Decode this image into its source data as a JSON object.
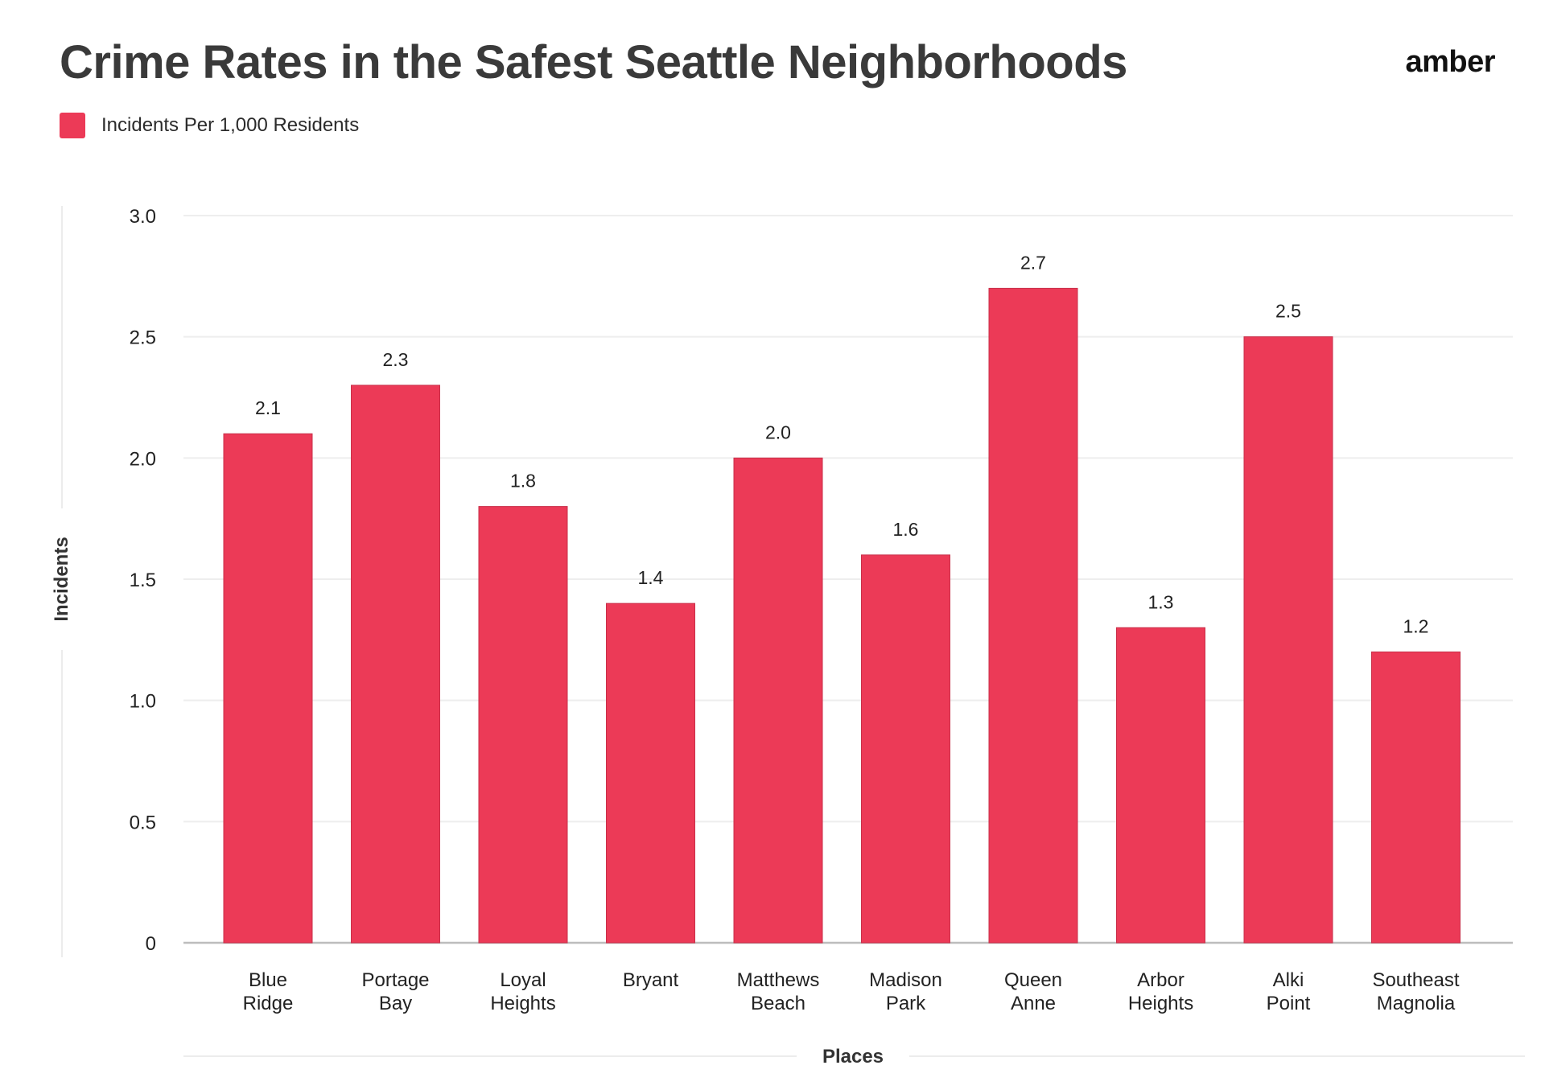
{
  "header": {
    "title": "Crime Rates in the Safest Seattle Neighborhoods",
    "brand": "amber"
  },
  "chart_data": {
    "type": "bar",
    "title": "Crime Rates in the Safest Seattle Neighborhoods",
    "xlabel": "Places",
    "ylabel": "Incidents",
    "categories": [
      [
        "Blue",
        "Ridge"
      ],
      [
        "Portage",
        "Bay"
      ],
      [
        "Loyal",
        "Heights"
      ],
      [
        "Bryant"
      ],
      [
        "Matthews",
        "Beach"
      ],
      [
        "Madison",
        "Park"
      ],
      [
        "Queen",
        "Anne"
      ],
      [
        "Arbor",
        "Heights"
      ],
      [
        "Alki",
        "Point"
      ],
      [
        "Southeast",
        "Magnolia"
      ]
    ],
    "series": [
      {
        "name": "Incidents Per 1,000 Residents",
        "color": "#ec3a57",
        "values": [
          2.1,
          2.3,
          1.8,
          1.4,
          2.0,
          1.6,
          2.7,
          1.3,
          2.5,
          1.2
        ],
        "value_labels": [
          "2.1",
          "2.3",
          "1.8",
          "1.4",
          "2.0",
          "1.6",
          "2.7",
          "1.3",
          "2.5",
          "1.2"
        ]
      }
    ],
    "ylim": [
      0,
      3.0
    ],
    "yticks": [
      0,
      0.5,
      1.0,
      1.5,
      2.0,
      2.5,
      3.0
    ],
    "ytick_labels": [
      "0",
      "0.5",
      "1.0",
      "1.5",
      "2.0",
      "2.5",
      "3.0"
    ],
    "grid": true,
    "legend_position": "top-left"
  }
}
